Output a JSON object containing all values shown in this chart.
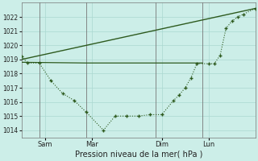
{
  "background_color": "#cceee8",
  "grid_color": "#aad8d0",
  "line_color": "#2d5a1e",
  "title": "Pression niveau de la mer( hPa )",
  "ylim": [
    1013.5,
    1023.0
  ],
  "yticks": [
    1014,
    1015,
    1016,
    1017,
    1018,
    1019,
    1020,
    1021,
    1022
  ],
  "xtick_labels": [
    "Sam",
    "Mar",
    "Dim",
    "Lun"
  ],
  "xtick_positions": [
    24,
    72,
    144,
    192
  ],
  "vlines_x": [
    18,
    66,
    138,
    186
  ],
  "xlim": [
    0,
    240
  ],
  "series1_x": [
    0,
    240
  ],
  "series1_y": [
    1019.0,
    1022.6
  ],
  "series2_x": [
    0,
    6,
    18,
    30,
    42,
    54,
    66,
    84,
    96,
    108,
    120,
    132,
    144,
    156,
    162,
    168,
    174,
    180,
    192,
    198,
    204,
    210,
    216,
    222,
    228,
    240
  ],
  "series2_y": [
    1019.2,
    1018.75,
    1018.75,
    1017.5,
    1016.6,
    1016.1,
    1015.3,
    1014.0,
    1015.0,
    1015.0,
    1015.0,
    1015.1,
    1015.1,
    1016.1,
    1016.5,
    1017.0,
    1017.7,
    1018.7,
    1018.7,
    1018.7,
    1019.3,
    1021.2,
    1021.7,
    1022.0,
    1022.2,
    1022.6
  ],
  "series3_x": [
    0,
    66,
    150,
    186
  ],
  "series3_y": [
    1018.8,
    1018.75,
    1018.75,
    1018.75
  ]
}
